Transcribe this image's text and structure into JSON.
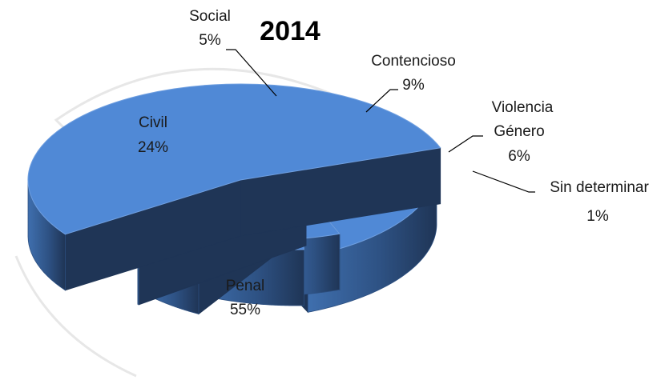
{
  "colors": {
    "top": "#5089d6",
    "side_light": "#3f6fae",
    "side_dark": "#1f3556",
    "edge": "#2c4f80",
    "watermark": "#cfcfcf"
  },
  "chart_data": {
    "type": "pie",
    "style": "3d-exploded",
    "title": "2014",
    "legend": "none",
    "slices": [
      {
        "name": "Penal",
        "value": 55,
        "label": "55%"
      },
      {
        "name": "Civil",
        "value": 24,
        "label": "24%"
      },
      {
        "name": "Social",
        "value": 5,
        "label": "5%"
      },
      {
        "name": "Contencioso",
        "value": 9,
        "label": "9%"
      },
      {
        "name": "Violencia Género",
        "name_lines": [
          "Violencia",
          "Género"
        ],
        "value": 6,
        "label": "6%"
      },
      {
        "name": "Sin determinar",
        "value": 1,
        "label": "1%"
      }
    ]
  }
}
